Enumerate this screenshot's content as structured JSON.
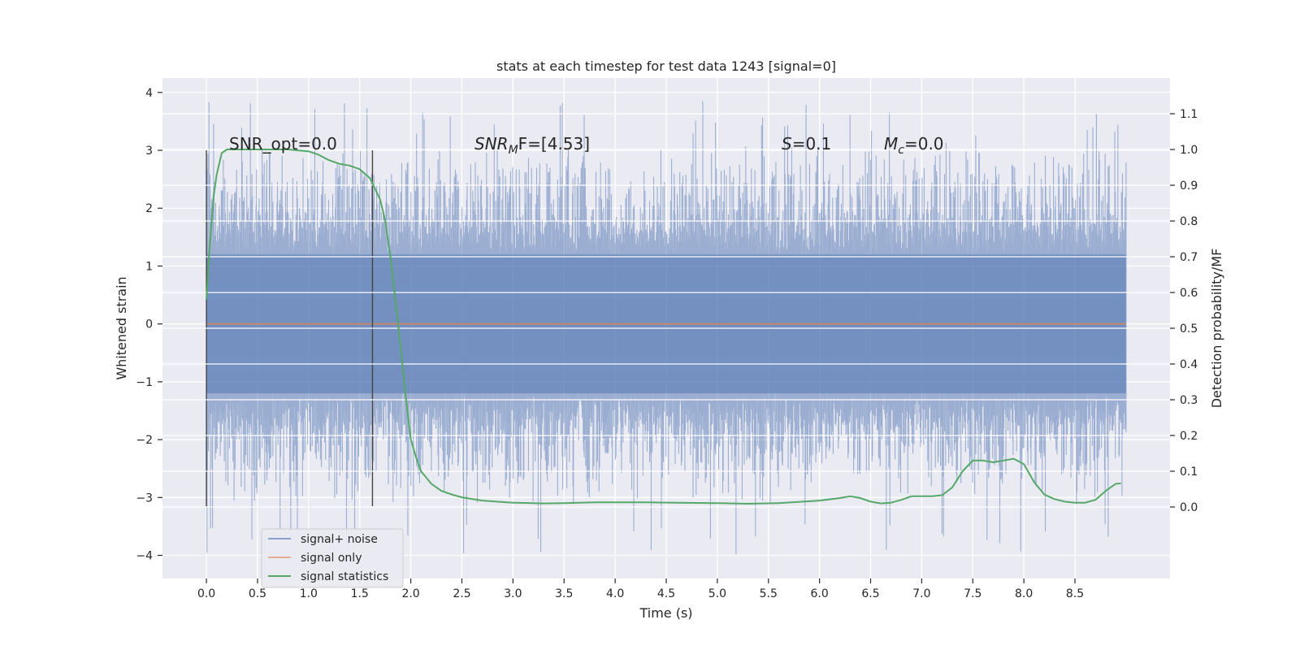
{
  "chart_data": {
    "type": "line",
    "title": "stats at each timestep for test data 1243 [signal=0]",
    "xlabel": "Time (s)",
    "ylabel_left": "Whitened strain",
    "ylabel_right": "Detection probability/MF",
    "xlim": [
      -0.43,
      9.43
    ],
    "ylim_left": [
      -4.4,
      4.25
    ],
    "ylim_right": [
      -0.2,
      1.2
    ],
    "xticks": [
      0.0,
      0.5,
      1.0,
      1.5,
      2.0,
      2.5,
      3.0,
      3.5,
      4.0,
      4.5,
      5.0,
      5.5,
      6.0,
      6.5,
      7.0,
      7.5,
      8.0,
      8.5
    ],
    "xtick_labels": [
      "0.0",
      "0.5",
      "1.0",
      "1.5",
      "2.0",
      "2.5",
      "3.0",
      "3.5",
      "4.0",
      "4.5",
      "5.0",
      "5.5",
      "6.0",
      "6.5",
      "7.0",
      "7.5",
      "8.0",
      "8.5"
    ],
    "yticks_left": [
      -4,
      -3,
      -2,
      -1,
      0,
      1,
      2,
      3,
      4
    ],
    "ytick_labels_left": [
      "−4",
      "−3",
      "−2",
      "−1",
      "0",
      "1",
      "2",
      "3",
      "4"
    ],
    "yticks_right": [
      0.0,
      0.1,
      0.2,
      0.3,
      0.4,
      0.5,
      0.6,
      0.7,
      0.8,
      0.9,
      1.0,
      1.1
    ],
    "ytick_labels_right": [
      "0.0",
      "0.1",
      "0.2",
      "0.3",
      "0.4",
      "0.5",
      "0.6",
      "0.7",
      "0.8",
      "0.9",
      "1.0",
      "1.1"
    ],
    "grid": true,
    "legend_position": "lower-left",
    "series": [
      {
        "name": "signal+ noise",
        "axis": "left",
        "color": "#4c72b0",
        "x_range": [
          0.0,
          9.0
        ],
        "band": {
          "core_low": -1.2,
          "core_high": 1.2,
          "spike_high": 3.85,
          "spike_low": -4.0
        },
        "style": "dense-noise"
      },
      {
        "name": "signal only",
        "axis": "left",
        "color": "#dd8452",
        "x": [
          0.0,
          9.0
        ],
        "y": [
          0.0,
          0.0
        ]
      },
      {
        "name": "signal statistics",
        "axis": "right",
        "color": "#55a868",
        "x": [
          0.0,
          0.03,
          0.07,
          0.1,
          0.15,
          0.2,
          0.3,
          0.5,
          0.8,
          1.0,
          1.1,
          1.2,
          1.3,
          1.4,
          1.5,
          1.6,
          1.7,
          1.75,
          1.8,
          1.85,
          1.9,
          1.95,
          2.0,
          2.05,
          2.1,
          2.2,
          2.3,
          2.4,
          2.5,
          2.7,
          3.0,
          3.3,
          3.5,
          3.8,
          4.0,
          4.3,
          4.6,
          5.0,
          5.3,
          5.6,
          6.0,
          6.2,
          6.3,
          6.4,
          6.5,
          6.6,
          6.7,
          6.8,
          6.9,
          7.0,
          7.1,
          7.2,
          7.3,
          7.4,
          7.5,
          7.6,
          7.7,
          7.8,
          7.9,
          8.0,
          8.1,
          8.2,
          8.3,
          8.4,
          8.5,
          8.6,
          8.7,
          8.8,
          8.9,
          8.95
        ],
        "y": [
          0.58,
          0.72,
          0.87,
          0.93,
          0.99,
          1.0,
          1.0,
          1.0,
          1.0,
          0.995,
          0.985,
          0.97,
          0.96,
          0.955,
          0.945,
          0.92,
          0.86,
          0.8,
          0.7,
          0.58,
          0.45,
          0.31,
          0.19,
          0.14,
          0.1,
          0.065,
          0.045,
          0.035,
          0.027,
          0.018,
          0.012,
          0.01,
          0.011,
          0.013,
          0.013,
          0.013,
          0.012,
          0.011,
          0.009,
          0.011,
          0.018,
          0.025,
          0.03,
          0.025,
          0.015,
          0.01,
          0.012,
          0.02,
          0.03,
          0.03,
          0.03,
          0.033,
          0.055,
          0.1,
          0.13,
          0.13,
          0.125,
          0.13,
          0.135,
          0.12,
          0.07,
          0.035,
          0.022,
          0.015,
          0.012,
          0.012,
          0.02,
          0.045,
          0.065,
          0.066
        ]
      }
    ],
    "vlines": [
      {
        "x": 0.0,
        "y_range": [
          -3.15,
          3.0
        ],
        "color": "#444444"
      },
      {
        "x": 1.625,
        "y_range": [
          -3.15,
          3.0
        ],
        "color": "#444444"
      }
    ],
    "annotations": {
      "snr_opt": "SNR_opt=0.0",
      "snr_mf_main": "SNR",
      "snr_mf_sub": "M",
      "snr_mf_rest": "F=[4.53]",
      "s_main": "S",
      "s_rest": "=0.1",
      "mc_main": "M",
      "mc_sub": "c",
      "mc_rest": "=0.0"
    }
  }
}
